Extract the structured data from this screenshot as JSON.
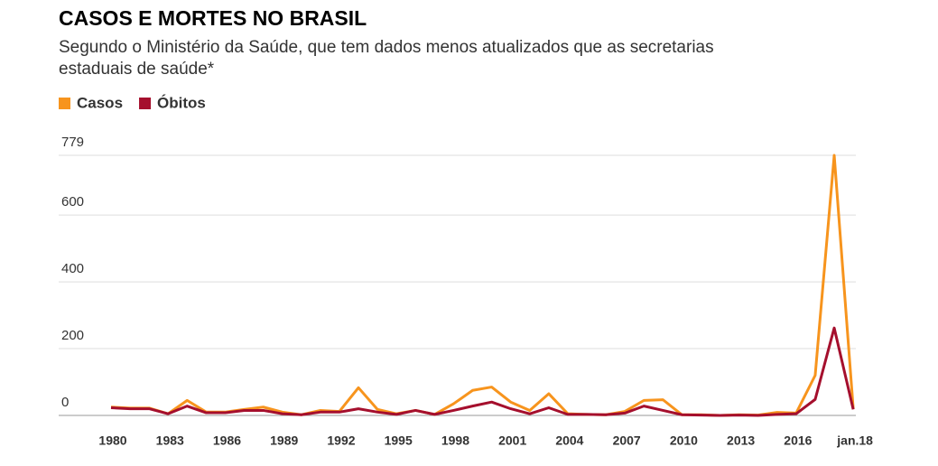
{
  "chart_data": {
    "type": "line",
    "title": "CASOS E MORTES NO BRASIL",
    "subtitle": [
      "Segundo o Ministério da Saúde, que tem dados menos atualizados que as secretarias",
      "estaduais de saúde*"
    ],
    "categories": [
      "1980",
      null,
      null,
      "1983",
      null,
      null,
      "1986",
      null,
      null,
      "1989",
      null,
      null,
      "1992",
      null,
      null,
      "1995",
      null,
      null,
      "1998",
      null,
      null,
      "2001",
      null,
      null,
      "2004",
      null,
      null,
      "2007",
      null,
      null,
      "2010",
      null,
      null,
      "2013",
      null,
      null,
      "2016",
      null,
      null,
      "jan.18"
    ],
    "series": [
      {
        "name": "Casos",
        "color": "#f7941d",
        "values": [
          25,
          22,
          22,
          5,
          45,
          10,
          10,
          18,
          25,
          10,
          2,
          15,
          12,
          83,
          18,
          5,
          15,
          3,
          35,
          75,
          85,
          40,
          15,
          65,
          5,
          3,
          2,
          12,
          45,
          47,
          2,
          2,
          0,
          2,
          1,
          9,
          7,
          120,
          779,
          20
        ]
      },
      {
        "name": "Óbitos",
        "color": "#a50f2d",
        "values": [
          23,
          20,
          20,
          5,
          28,
          8,
          8,
          15,
          15,
          5,
          2,
          10,
          10,
          20,
          10,
          3,
          15,
          3,
          15,
          28,
          40,
          20,
          5,
          23,
          3,
          3,
          2,
          7,
          28,
          15,
          2,
          1,
          0,
          1,
          0,
          3,
          5,
          48,
          262,
          18
        ]
      }
    ],
    "ylim": [
      0,
      779
    ],
    "yticks": [
      0,
      200,
      400,
      600,
      779
    ],
    "grid": true,
    "legend": "top-left"
  }
}
